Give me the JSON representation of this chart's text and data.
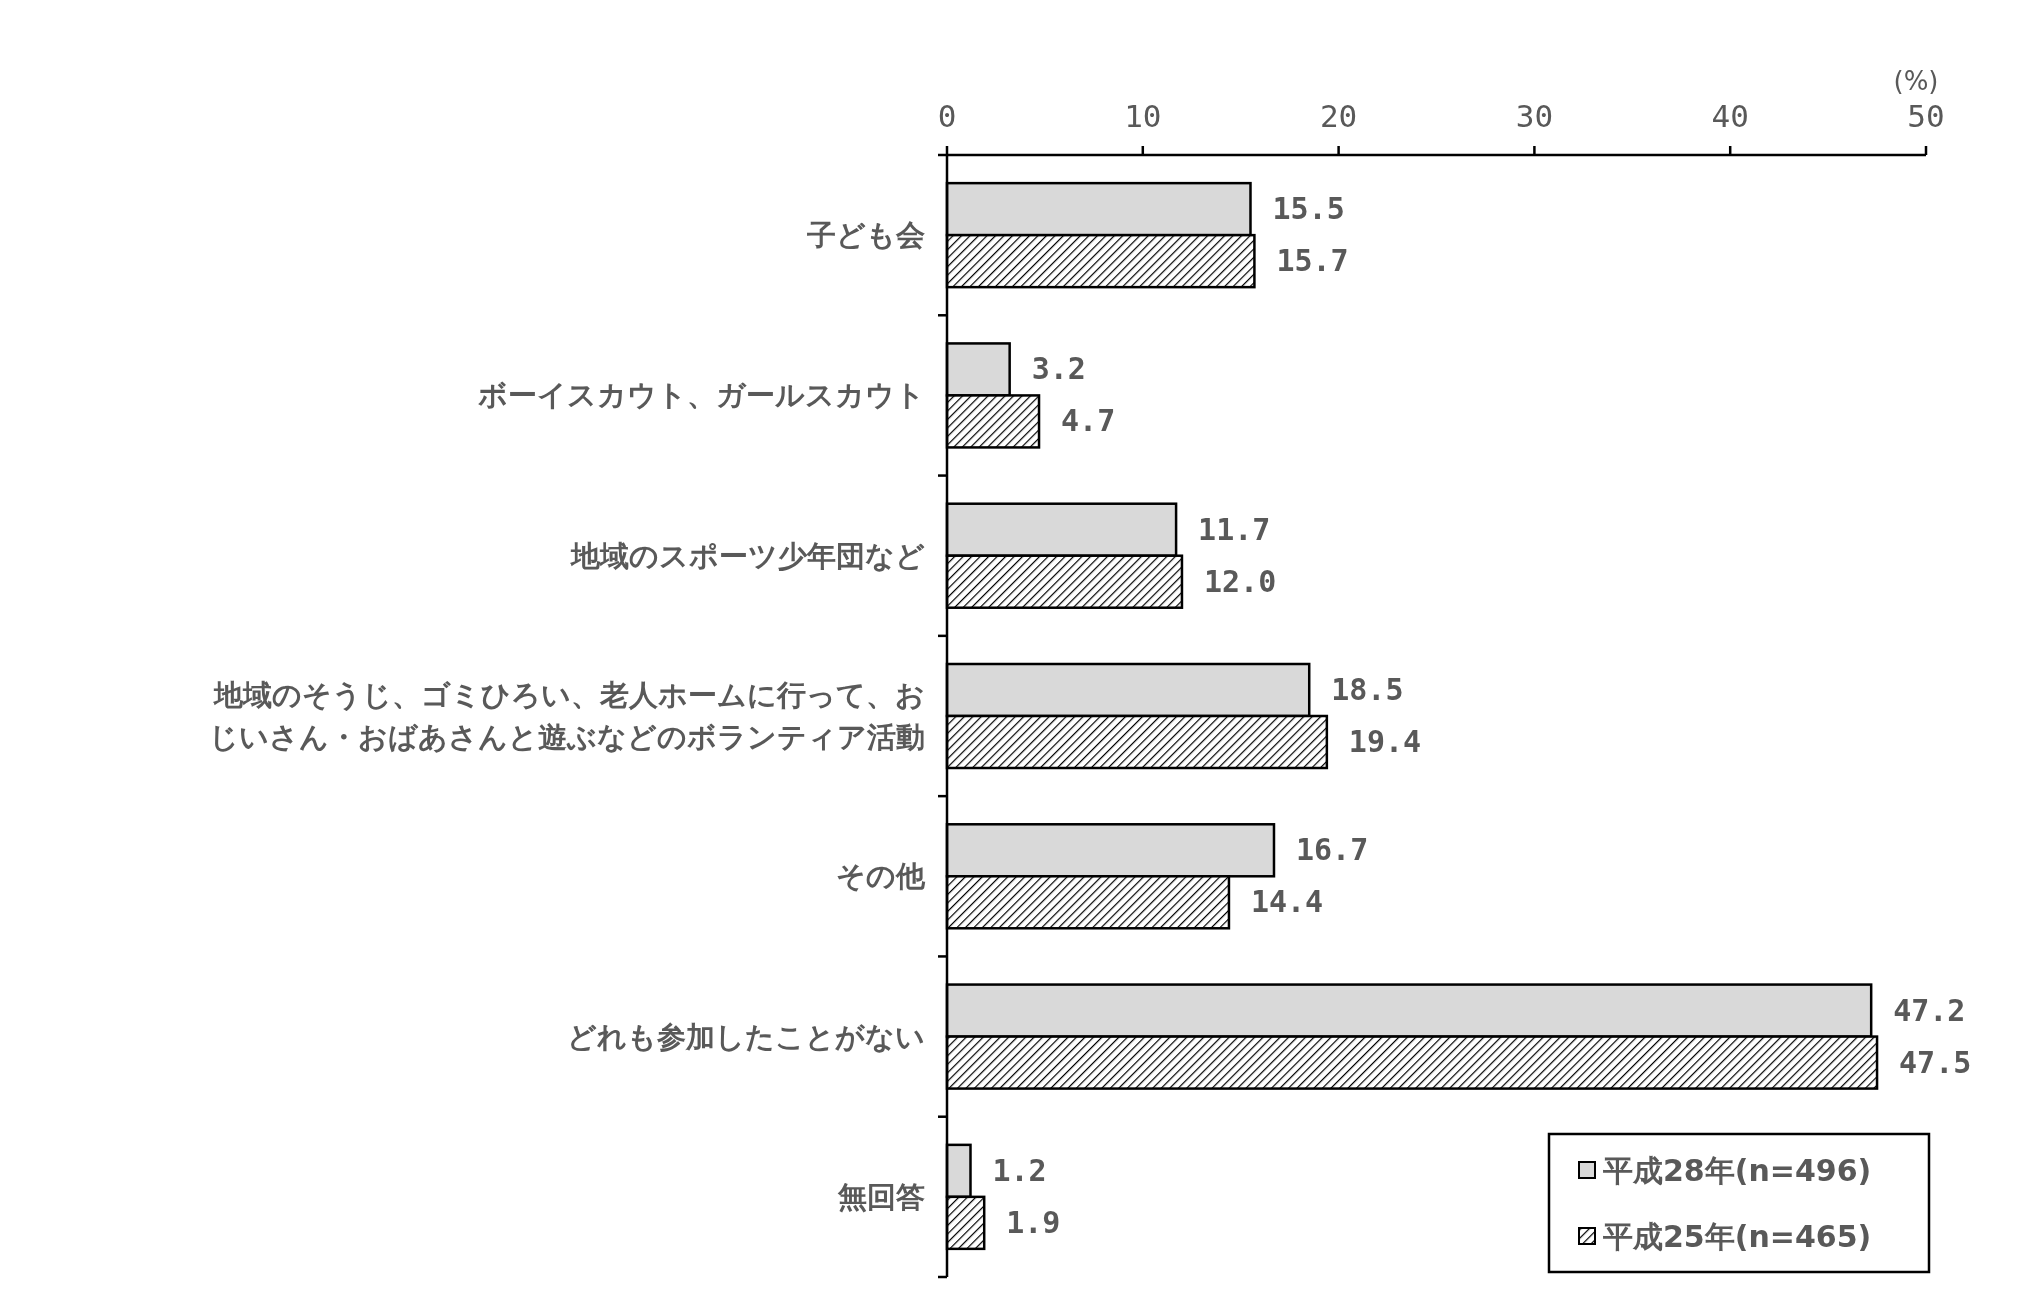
{
  "chart_data": {
    "type": "bar",
    "orientation": "horizontal",
    "xlabel": "(%)",
    "categories": [
      "子ども会",
      "ボーイスカウト、ガールスカウト",
      "地域のスポーツ少年団など",
      "地域のそうじ、ゴミひろい、老人ホームに行って、おじいさん・おばあさんと遊ぶなどのボランティア活動",
      "その他",
      "どれも参加したことがない",
      "無回答"
    ],
    "series": [
      {
        "name": "平成28年(n=496)",
        "color": "#d9d9d9",
        "values": [
          15.5,
          3.2,
          11.7,
          18.5,
          16.7,
          47.2,
          1.2
        ],
        "value_labels": [
          "15.5",
          "3.2",
          "11.7",
          "18.5",
          "16.7",
          "47.2",
          "1.2"
        ]
      },
      {
        "name": "平成25年(n=465)",
        "color": "#000000",
        "values": [
          15.7,
          4.7,
          12.0,
          19.4,
          14.4,
          47.5,
          1.9
        ],
        "value_labels": [
          "15.7",
          "4.7",
          "12.0",
          "19.4",
          "14.4",
          "47.5",
          "1.9"
        ]
      }
    ],
    "xlim": [
      0,
      50
    ],
    "xticks": [
      0,
      10,
      20,
      30,
      40,
      50
    ],
    "legend": "bottom right",
    "grid": false
  }
}
